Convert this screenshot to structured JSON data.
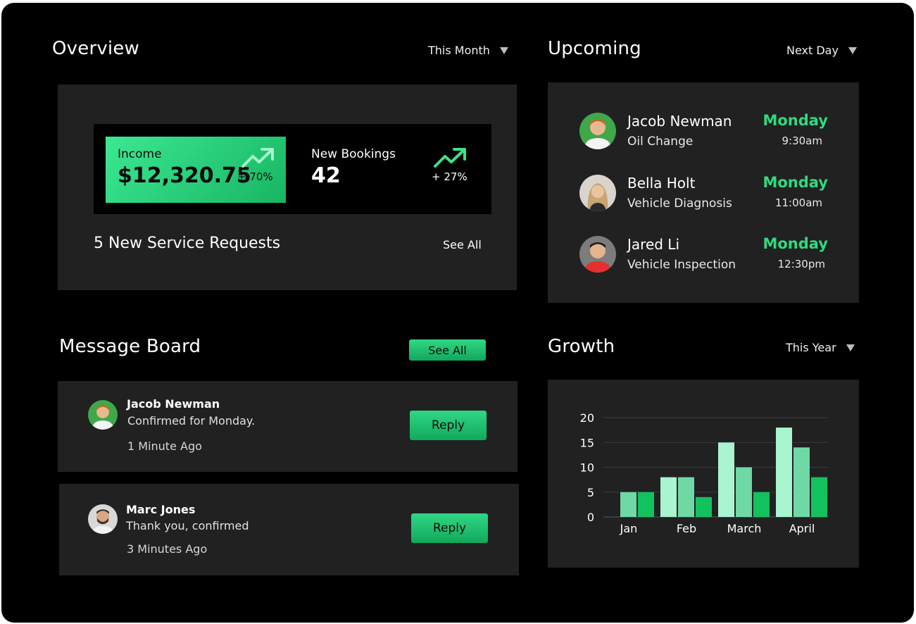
{
  "overview": {
    "title": "Overview",
    "filter": "This Month",
    "income": {
      "label": "Income",
      "value": "$12,320.75",
      "change": "+ 70%"
    },
    "bookings": {
      "label": "New Bookings",
      "value": "42",
      "change": "+ 27%"
    },
    "requests_text": "5 New Service Requests",
    "see_all": "See All"
  },
  "upcoming": {
    "title": "Upcoming",
    "filter": "Next Day",
    "items": [
      {
        "name": "Jacob Newman",
        "service": "Oil Change",
        "day": "Monday",
        "time": "9:30am",
        "avatar": "avatar-man-glasses-green"
      },
      {
        "name": "Bella Holt",
        "service": "Vehicle Diagnosis",
        "day": "Monday",
        "time": "11:00am",
        "avatar": "avatar-woman-blonde"
      },
      {
        "name": "Jared Li",
        "service": "Vehicle Inspection",
        "day": "Monday",
        "time": "12:30pm",
        "avatar": "avatar-man-red-shirt"
      }
    ]
  },
  "messages": {
    "title": "Message Board",
    "see_all": "See All",
    "items": [
      {
        "name": "Jacob Newman",
        "text": "Confirmed for Monday.",
        "time": "1 Minute Ago",
        "reply": "Reply"
      },
      {
        "name": "Marc Jones",
        "text": "Thank you, confirmed",
        "time": "3 Minutes Ago",
        "reply": "Reply"
      }
    ]
  },
  "growth": {
    "title": "Growth",
    "filter": "This Year"
  },
  "colors": {
    "accent": "#32d97f",
    "panel": "#212121",
    "bar_light": "#a8f5d0",
    "bar_mid": "#6fd9a6",
    "bar_dark": "#12c25f"
  },
  "chart_data": {
    "type": "bar",
    "categories": [
      "Jan",
      "Feb",
      "March",
      "April"
    ],
    "series": [
      {
        "values": [
          0,
          8,
          15,
          18
        ],
        "color": "#a8f5d0"
      },
      {
        "values": [
          5,
          8,
          10,
          14
        ],
        "color": "#6fd9a6"
      },
      {
        "values": [
          5,
          4,
          5,
          8
        ],
        "color": "#12c25f"
      }
    ],
    "yticks": [
      "0",
      "5",
      "10",
      "15",
      "20"
    ],
    "ylim": [
      0,
      20
    ],
    "grid": true,
    "legend": "none"
  }
}
